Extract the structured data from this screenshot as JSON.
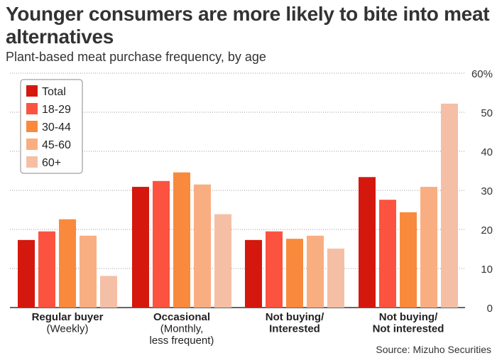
{
  "header": {
    "title": "Younger consumers are more likely to bite into meat alternatives",
    "subtitle": "Plant-based meat purchase frequency, by age"
  },
  "footer": {
    "source": "Source: Mizuho Securities"
  },
  "colors": {
    "Total": "#d4180e",
    "18-29": "#fb5340",
    "30-44": "#f9893c",
    "45-60": "#f9ae82",
    "60+": "#f5bfa5",
    "grid": "#999999",
    "axis": "#333333"
  },
  "chart_data": {
    "type": "bar",
    "categories": [
      [
        "Regular buyer",
        "(Weekly)"
      ],
      [
        "Occasional",
        "(Monthly,",
        "less frequent)"
      ],
      [
        "Not buying/",
        "Interested"
      ],
      [
        "Not buying/",
        "Not interested"
      ]
    ],
    "series": [
      {
        "name": "Total",
        "values": [
          17.3,
          30.9,
          17.3,
          33.4
        ]
      },
      {
        "name": "18-29",
        "values": [
          19.5,
          32.4,
          19.5,
          27.6
        ]
      },
      {
        "name": "30-44",
        "values": [
          22.6,
          34.6,
          17.6,
          24.4
        ]
      },
      {
        "name": "45-60",
        "values": [
          18.4,
          31.5,
          18.4,
          30.9
        ]
      },
      {
        "name": "60+",
        "values": [
          8.1,
          23.9,
          15.1,
          52.2
        ]
      }
    ],
    "y_ticks": [
      "0",
      "10",
      "20",
      "30",
      "40",
      "50",
      "60%"
    ],
    "ylim": [
      0,
      60
    ],
    "grid": true,
    "legend_position": "top-left"
  }
}
